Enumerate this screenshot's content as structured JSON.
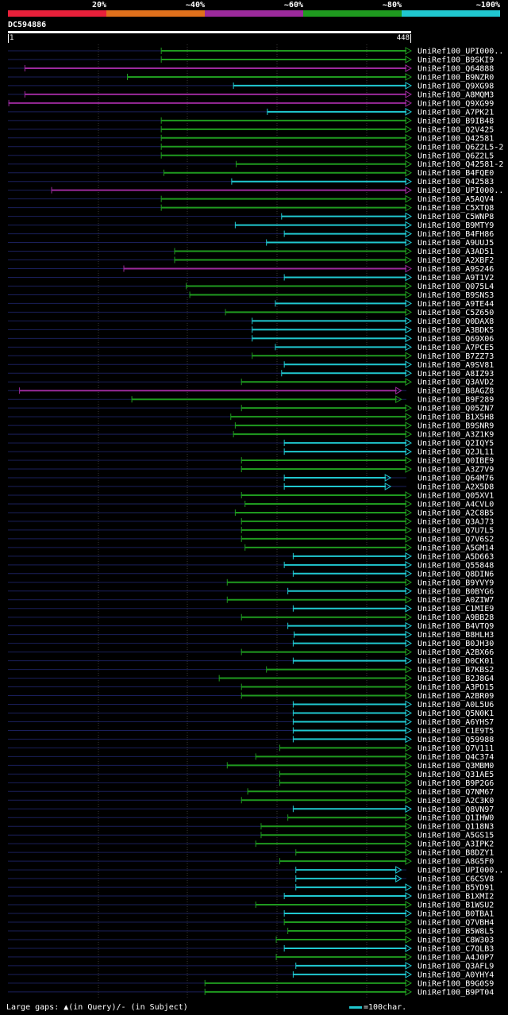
{
  "legend": [
    {
      "label": "20%",
      "color": "#e8203a"
    },
    {
      "label": "~40%",
      "color": "#e0701c"
    },
    {
      "label": "~60%",
      "color": "#9c2a9c"
    },
    {
      "label": "~80%",
      "color": "#1f9a1f"
    },
    {
      "label": "~100%",
      "color": "#20c8d0"
    }
  ],
  "query": {
    "id": "DC594886",
    "start_label": "1",
    "end_label": "448",
    "length": 448
  },
  "footer": {
    "gaps_text": "Large gaps: ▲(in Query)/- (in Subject)",
    "scale_text": "=100char."
  },
  "chart_data": {
    "type": "alignment",
    "query_length": 448,
    "hits": [
      {
        "name": "UniRef100_UPI000..",
        "start": 173,
        "end": 448,
        "cls": "g"
      },
      {
        "name": "UniRef100_B9SKI9",
        "start": 173,
        "end": 448,
        "cls": "g"
      },
      {
        "name": "UniRef100_Q64888",
        "start": 20,
        "end": 448,
        "cls": "m"
      },
      {
        "name": "UniRef100_B9NZR0",
        "start": 135,
        "end": 448,
        "cls": "g"
      },
      {
        "name": "UniRef100_Q9XG98",
        "start": 254,
        "end": 448,
        "cls": "c"
      },
      {
        "name": "UniRef100_A8MQM3",
        "start": 20,
        "end": 448,
        "cls": "m"
      },
      {
        "name": "UniRef100_Q9XG99",
        "start": 2,
        "end": 448,
        "cls": "m"
      },
      {
        "name": "UniRef100_A7PK21",
        "start": 292,
        "end": 448,
        "cls": "c"
      },
      {
        "name": "UniRef100_B9IB48",
        "start": 173,
        "end": 448,
        "cls": "g"
      },
      {
        "name": "UniRef100_Q2V425",
        "start": 173,
        "end": 448,
        "cls": "g"
      },
      {
        "name": "UniRef100_Q42581",
        "start": 173,
        "end": 448,
        "cls": "g"
      },
      {
        "name": "UniRef100_Q6Z2L5-2",
        "start": 173,
        "end": 448,
        "cls": "g"
      },
      {
        "name": "UniRef100_Q6Z2L5",
        "start": 173,
        "end": 448,
        "cls": "g"
      },
      {
        "name": "UniRef100_Q42581-2",
        "start": 257,
        "end": 448,
        "cls": "g"
      },
      {
        "name": "UniRef100_B4FQE0",
        "start": 176,
        "end": 448,
        "cls": "g"
      },
      {
        "name": "UniRef100_Q42583",
        "start": 252,
        "end": 448,
        "cls": "c"
      },
      {
        "name": "UniRef100_UPI000..",
        "start": 50,
        "end": 448,
        "cls": "m"
      },
      {
        "name": "UniRef100_A5AQV4",
        "start": 173,
        "end": 448,
        "cls": "g"
      },
      {
        "name": "UniRef100_C5XTQ8",
        "start": 173,
        "end": 448,
        "cls": "g"
      },
      {
        "name": "UniRef100_C5WNP8",
        "start": 308,
        "end": 448,
        "cls": "c"
      },
      {
        "name": "UniRef100_B9MTY9",
        "start": 256,
        "end": 448,
        "cls": "c"
      },
      {
        "name": "UniRef100_B4FH86",
        "start": 311,
        "end": 448,
        "cls": "c"
      },
      {
        "name": "UniRef100_A9UUJ5",
        "start": 291,
        "end": 448,
        "cls": "c"
      },
      {
        "name": "UniRef100_A3AD51",
        "start": 188,
        "end": 448,
        "cls": "g"
      },
      {
        "name": "UniRef100_A2XBF2",
        "start": 188,
        "end": 448,
        "cls": "g"
      },
      {
        "name": "UniRef100_A9S246",
        "start": 131,
        "end": 448,
        "cls": "m"
      },
      {
        "name": "UniRef100_A9T1V2",
        "start": 311,
        "end": 448,
        "cls": "c"
      },
      {
        "name": "UniRef100_Q075L4",
        "start": 201,
        "end": 448,
        "cls": "g"
      },
      {
        "name": "UniRef100_B9SNS3",
        "start": 205,
        "end": 448,
        "cls": "g"
      },
      {
        "name": "UniRef100_A9TE44",
        "start": 301,
        "end": 448,
        "cls": "c"
      },
      {
        "name": "UniRef100_C5Z650",
        "start": 245,
        "end": 448,
        "cls": "g"
      },
      {
        "name": "UniRef100_Q0DAX8",
        "start": 275,
        "end": 448,
        "cls": "c"
      },
      {
        "name": "UniRef100_A3BDK5",
        "start": 275,
        "end": 448,
        "cls": "c"
      },
      {
        "name": "UniRef100_Q69X06",
        "start": 275,
        "end": 448,
        "cls": "c"
      },
      {
        "name": "UniRef100_A7PCE5",
        "start": 301,
        "end": 448,
        "cls": "c"
      },
      {
        "name": "UniRef100_B7ZZ73",
        "start": 275,
        "end": 448,
        "cls": "g"
      },
      {
        "name": "UniRef100_A9SV81",
        "start": 311,
        "end": 448,
        "cls": "c"
      },
      {
        "name": "UniRef100_A8IZ93",
        "start": 308,
        "end": 448,
        "cls": "c"
      },
      {
        "name": "UniRef100_Q3AVD2",
        "start": 263,
        "end": 448,
        "cls": "g"
      },
      {
        "name": "UniRef100_B8AGZ8",
        "start": 14,
        "end": 437,
        "cls": "m"
      },
      {
        "name": "UniRef100_B9F289",
        "start": 140,
        "end": 437,
        "cls": "g"
      },
      {
        "name": "UniRef100_Q05ZN7",
        "start": 263,
        "end": 448,
        "cls": "g"
      },
      {
        "name": "UniRef100_B1X5H8",
        "start": 251,
        "end": 448,
        "cls": "g"
      },
      {
        "name": "UniRef100_B9SNR9",
        "start": 256,
        "end": 448,
        "cls": "g"
      },
      {
        "name": "UniRef100_A3Z1K9",
        "start": 254,
        "end": 448,
        "cls": "g"
      },
      {
        "name": "UniRef100_Q2IQY5",
        "start": 311,
        "end": 448,
        "cls": "c"
      },
      {
        "name": "UniRef100_Q2JL11",
        "start": 311,
        "end": 448,
        "cls": "c"
      },
      {
        "name": "UniRef100_Q0IBE9",
        "start": 263,
        "end": 448,
        "cls": "g"
      },
      {
        "name": "UniRef100_A3Z7V9",
        "start": 263,
        "end": 448,
        "cls": "g"
      },
      {
        "name": "UniRef100_Q64M76",
        "start": 311,
        "end": 425,
        "cls": "c"
      },
      {
        "name": "UniRef100_A2X5D8",
        "start": 311,
        "end": 425,
        "cls": "c"
      },
      {
        "name": "UniRef100_Q05XV1",
        "start": 263,
        "end": 448,
        "cls": "g"
      },
      {
        "name": "UniRef100_A4CVL0",
        "start": 267,
        "end": 448,
        "cls": "g"
      },
      {
        "name": "UniRef100_A2C8B5",
        "start": 256,
        "end": 448,
        "cls": "g"
      },
      {
        "name": "UniRef100_Q3AJ73",
        "start": 263,
        "end": 448,
        "cls": "g"
      },
      {
        "name": "UniRef100_Q7U7L5",
        "start": 263,
        "end": 448,
        "cls": "g"
      },
      {
        "name": "UniRef100_Q7V6S2",
        "start": 263,
        "end": 448,
        "cls": "g"
      },
      {
        "name": "UniRef100_A5GM14",
        "start": 267,
        "end": 448,
        "cls": "g"
      },
      {
        "name": "UniRef100_A5D663",
        "start": 321,
        "end": 448,
        "cls": "c"
      },
      {
        "name": "UniRef100_Q55848",
        "start": 311,
        "end": 448,
        "cls": "c"
      },
      {
        "name": "UniRef100_Q8DIN6",
        "start": 321,
        "end": 448,
        "cls": "c"
      },
      {
        "name": "UniRef100_B9YVY9",
        "start": 247,
        "end": 448,
        "cls": "g"
      },
      {
        "name": "UniRef100_B0BYG6",
        "start": 315,
        "end": 448,
        "cls": "c"
      },
      {
        "name": "UniRef100_A0ZIW7",
        "start": 247,
        "end": 448,
        "cls": "g"
      },
      {
        "name": "UniRef100_C1MIE9",
        "start": 321,
        "end": 448,
        "cls": "c"
      },
      {
        "name": "UniRef100_A9BB28",
        "start": 263,
        "end": 448,
        "cls": "g"
      },
      {
        "name": "UniRef100_B4VTQ9",
        "start": 315,
        "end": 448,
        "cls": "c"
      },
      {
        "name": "UniRef100_B8HLH3",
        "start": 322,
        "end": 448,
        "cls": "c"
      },
      {
        "name": "UniRef100_B0JH30",
        "start": 321,
        "end": 448,
        "cls": "c"
      },
      {
        "name": "UniRef100_A2BX66",
        "start": 263,
        "end": 448,
        "cls": "g"
      },
      {
        "name": "UniRef100_D0CK01",
        "start": 321,
        "end": 448,
        "cls": "c"
      },
      {
        "name": "UniRef100_B7KBS2",
        "start": 291,
        "end": 448,
        "cls": "g"
      },
      {
        "name": "UniRef100_B2J8G4",
        "start": 238,
        "end": 448,
        "cls": "g"
      },
      {
        "name": "UniRef100_A3PD15",
        "start": 263,
        "end": 448,
        "cls": "g"
      },
      {
        "name": "UniRef100_A2BR09",
        "start": 263,
        "end": 448,
        "cls": "g"
      },
      {
        "name": "UniRef100_A0L5U6",
        "start": 321,
        "end": 448,
        "cls": "c"
      },
      {
        "name": "UniRef100_Q5N0K1",
        "start": 321,
        "end": 448,
        "cls": "c"
      },
      {
        "name": "UniRef100_A6YHS7",
        "start": 321,
        "end": 448,
        "cls": "c"
      },
      {
        "name": "UniRef100_C1E9T5",
        "start": 321,
        "end": 448,
        "cls": "c"
      },
      {
        "name": "UniRef100_Q59988",
        "start": 321,
        "end": 448,
        "cls": "c"
      },
      {
        "name": "UniRef100_Q7V111",
        "start": 306,
        "end": 448,
        "cls": "g"
      },
      {
        "name": "UniRef100_Q4C374",
        "start": 279,
        "end": 448,
        "cls": "g"
      },
      {
        "name": "UniRef100_Q3MBM0",
        "start": 247,
        "end": 448,
        "cls": "g"
      },
      {
        "name": "UniRef100_Q31AE5",
        "start": 306,
        "end": 448,
        "cls": "g"
      },
      {
        "name": "UniRef100_B9P2G6",
        "start": 306,
        "end": 448,
        "cls": "g"
      },
      {
        "name": "UniRef100_Q7NM67",
        "start": 270,
        "end": 448,
        "cls": "g"
      },
      {
        "name": "UniRef100_A2C3K0",
        "start": 263,
        "end": 448,
        "cls": "g"
      },
      {
        "name": "UniRef100_Q8VN97",
        "start": 321,
        "end": 448,
        "cls": "c"
      },
      {
        "name": "UniRef100_Q1IHW0",
        "start": 315,
        "end": 448,
        "cls": "g"
      },
      {
        "name": "UniRef100_Q118N3",
        "start": 285,
        "end": 448,
        "cls": "g"
      },
      {
        "name": "UniRef100_A5GS15",
        "start": 285,
        "end": 448,
        "cls": "g"
      },
      {
        "name": "UniRef100_A3IPK2",
        "start": 279,
        "end": 448,
        "cls": "g"
      },
      {
        "name": "UniRef100_B8DZY1",
        "start": 324,
        "end": 448,
        "cls": "g"
      },
      {
        "name": "UniRef100_A8G5F0",
        "start": 306,
        "end": 448,
        "cls": "g"
      },
      {
        "name": "UniRef100_UPI000..",
        "start": 324,
        "end": 437,
        "cls": "c"
      },
      {
        "name": "UniRef100_C6CSV8",
        "start": 324,
        "end": 437,
        "cls": "c"
      },
      {
        "name": "UniRef100_B5YD91",
        "start": 324,
        "end": 448,
        "cls": "c"
      },
      {
        "name": "UniRef100_B1XMI2",
        "start": 311,
        "end": 448,
        "cls": "c"
      },
      {
        "name": "UniRef100_B1WSU2",
        "start": 279,
        "end": 448,
        "cls": "g"
      },
      {
        "name": "UniRef100_B0TBA1",
        "start": 311,
        "end": 448,
        "cls": "c"
      },
      {
        "name": "UniRef100_Q7VBH4",
        "start": 311,
        "end": 448,
        "cls": "g"
      },
      {
        "name": "UniRef100_B5W8L5",
        "start": 315,
        "end": 448,
        "cls": "g"
      },
      {
        "name": "UniRef100_C8W303",
        "start": 302,
        "end": 448,
        "cls": "g"
      },
      {
        "name": "UniRef100_C7QLB3",
        "start": 311,
        "end": 448,
        "cls": "c"
      },
      {
        "name": "UniRef100_A4J0P7",
        "start": 302,
        "end": 448,
        "cls": "g"
      },
      {
        "name": "UniRef100_Q3AFL9",
        "start": 324,
        "end": 448,
        "cls": "c"
      },
      {
        "name": "UniRef100_A0YHY4",
        "start": 321,
        "end": 448,
        "cls": "c"
      },
      {
        "name": "UniRef100_B9G0S9",
        "start": 222,
        "end": 448,
        "cls": "g"
      },
      {
        "name": "UniRef100_B9PT04",
        "start": 222,
        "end": 448,
        "cls": "g"
      }
    ]
  }
}
